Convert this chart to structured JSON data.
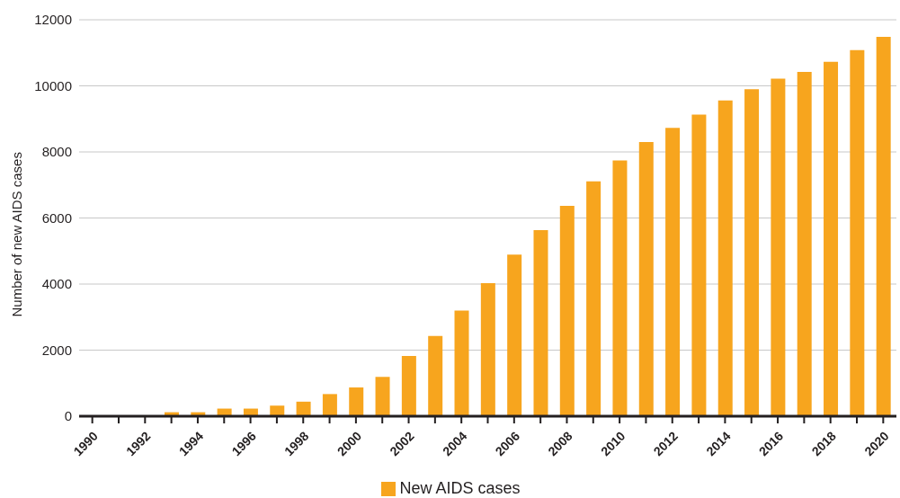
{
  "chart_data": {
    "type": "bar",
    "ylabel": "Number of new AIDS cases",
    "categories": [
      "1990",
      null,
      "1992",
      null,
      "1994",
      null,
      "1996",
      null,
      "1998",
      null,
      "2000",
      null,
      "2002",
      null,
      "2004",
      null,
      "2006",
      null,
      "2008",
      null,
      "2010",
      null,
      "2012",
      null,
      "2014",
      null,
      "2016",
      null,
      "2018",
      null,
      "2020"
    ],
    "series": [
      {
        "name": "New AIDS cases",
        "color": "#f7a51e",
        "values": [
          0,
          0,
          0,
          120,
          120,
          230,
          230,
          320,
          440,
          670,
          870,
          1190,
          1820,
          2430,
          3200,
          4030,
          4890,
          5630,
          6370,
          7110,
          7740,
          8300,
          8730,
          9130,
          9560,
          9900,
          10220,
          10420,
          10730,
          11080,
          11480
        ]
      }
    ],
    "ylim": [
      0,
      12000
    ],
    "yticks": [
      0,
      2000,
      4000,
      6000,
      8000,
      10000,
      12000
    ],
    "grid": "y",
    "legend": "bottom"
  }
}
